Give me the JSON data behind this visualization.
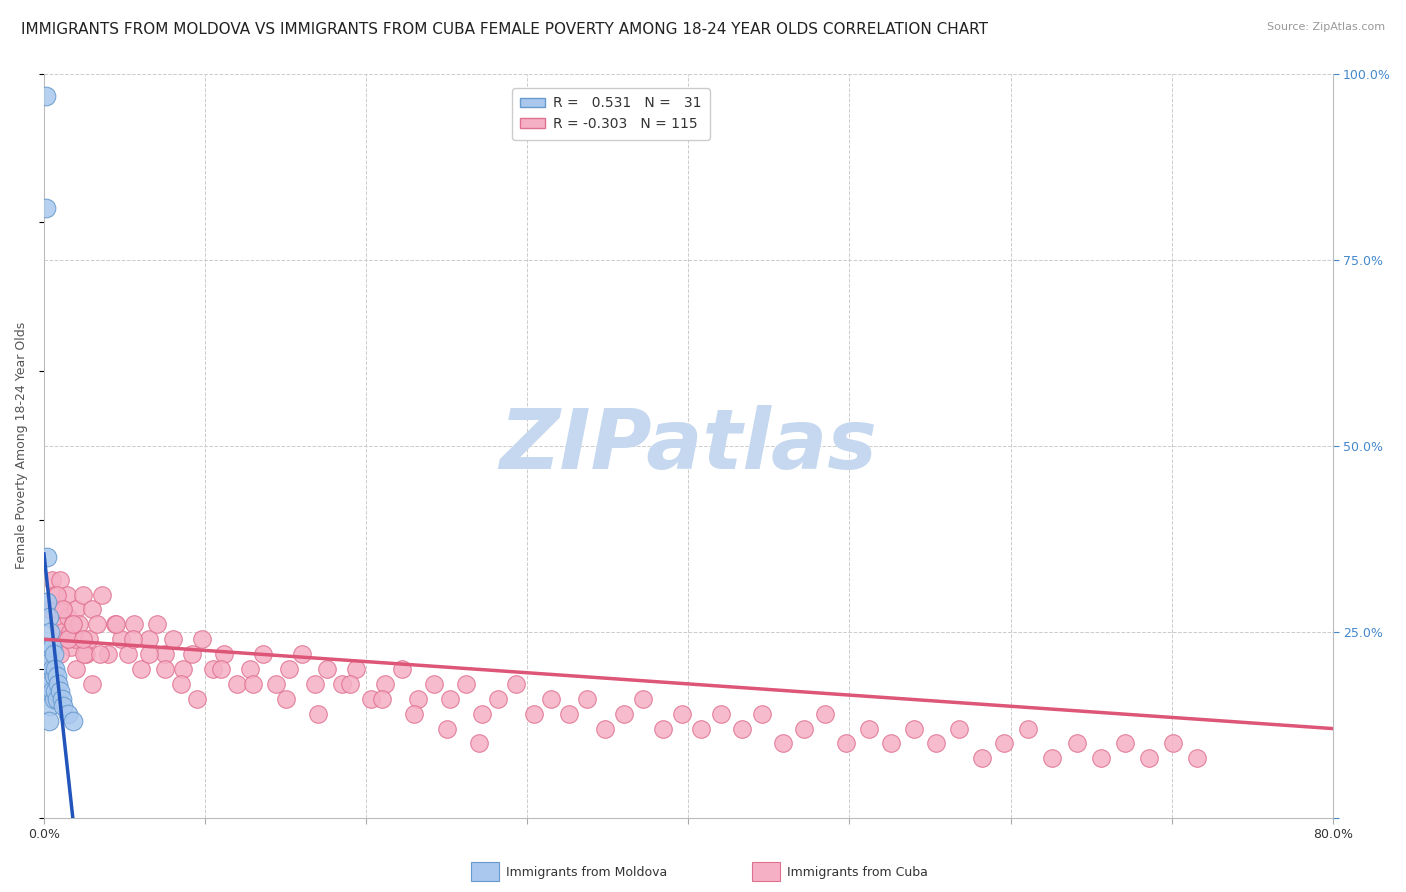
{
  "title": "IMMIGRANTS FROM MOLDOVA VS IMMIGRANTS FROM CUBA FEMALE POVERTY AMONG 18-24 YEAR OLDS CORRELATION CHART",
  "source": "Source: ZipAtlas.com",
  "ylabel": "Female Poverty Among 18-24 Year Olds",
  "xlim": [
    0.0,
    0.8
  ],
  "ylim": [
    0.0,
    1.0
  ],
  "xticks": [
    0.0,
    0.1,
    0.2,
    0.3,
    0.4,
    0.5,
    0.6,
    0.7,
    0.8
  ],
  "yticks_right": [
    0.0,
    0.25,
    0.5,
    0.75,
    1.0
  ],
  "moldova_R": 0.531,
  "moldova_N": 31,
  "cuba_R": -0.303,
  "cuba_N": 115,
  "moldova_color": "#aac8ee",
  "cuba_color": "#f5b0c5",
  "moldova_edge_color": "#6699cc",
  "cuba_edge_color": "#e07090",
  "moldova_line_color": "#2255bb",
  "cuba_line_color": "#dd5577",
  "background_color": "#ffffff",
  "grid_color": "#cccccc",
  "watermark": "ZIPatlas",
  "watermark_color": "#c5d8ef",
  "title_fontsize": 11,
  "axis_label_fontsize": 9,
  "tick_fontsize": 9,
  "legend_fontsize": 10,
  "moldova_x": [
    0.001,
    0.001,
    0.002,
    0.002,
    0.002,
    0.003,
    0.003,
    0.003,
    0.003,
    0.004,
    0.004,
    0.004,
    0.004,
    0.005,
    0.005,
    0.005,
    0.006,
    0.006,
    0.006,
    0.007,
    0.007,
    0.008,
    0.008,
    0.009,
    0.01,
    0.011,
    0.012,
    0.015,
    0.018,
    0.002,
    0.003
  ],
  "moldova_y": [
    0.97,
    0.82,
    0.29,
    0.23,
    0.2,
    0.27,
    0.22,
    0.19,
    0.17,
    0.25,
    0.21,
    0.18,
    0.15,
    0.23,
    0.2,
    0.17,
    0.22,
    0.19,
    0.16,
    0.2,
    0.17,
    0.19,
    0.16,
    0.18,
    0.17,
    0.16,
    0.15,
    0.14,
    0.13,
    0.35,
    0.13
  ],
  "cuba_x": [
    0.003,
    0.005,
    0.007,
    0.008,
    0.009,
    0.01,
    0.011,
    0.012,
    0.013,
    0.014,
    0.015,
    0.016,
    0.017,
    0.018,
    0.019,
    0.02,
    0.022,
    0.024,
    0.026,
    0.028,
    0.03,
    0.033,
    0.036,
    0.04,
    0.044,
    0.048,
    0.052,
    0.056,
    0.06,
    0.065,
    0.07,
    0.075,
    0.08,
    0.086,
    0.092,
    0.098,
    0.105,
    0.112,
    0.12,
    0.128,
    0.136,
    0.144,
    0.152,
    0.16,
    0.168,
    0.176,
    0.185,
    0.194,
    0.203,
    0.212,
    0.222,
    0.232,
    0.242,
    0.252,
    0.262,
    0.272,
    0.282,
    0.293,
    0.304,
    0.315,
    0.326,
    0.337,
    0.348,
    0.36,
    0.372,
    0.384,
    0.396,
    0.408,
    0.42,
    0.433,
    0.446,
    0.459,
    0.472,
    0.485,
    0.498,
    0.512,
    0.526,
    0.54,
    0.554,
    0.568,
    0.582,
    0.596,
    0.611,
    0.626,
    0.641,
    0.656,
    0.671,
    0.686,
    0.701,
    0.716,
    0.01,
    0.015,
    0.02,
    0.025,
    0.03,
    0.008,
    0.012,
    0.018,
    0.024,
    0.035,
    0.045,
    0.055,
    0.065,
    0.075,
    0.085,
    0.095,
    0.11,
    0.13,
    0.15,
    0.17,
    0.19,
    0.21,
    0.23,
    0.25,
    0.27
  ],
  "cuba_y": [
    0.28,
    0.32,
    0.3,
    0.26,
    0.28,
    0.32,
    0.25,
    0.28,
    0.24,
    0.3,
    0.27,
    0.25,
    0.23,
    0.26,
    0.24,
    0.28,
    0.26,
    0.3,
    0.22,
    0.24,
    0.28,
    0.26,
    0.3,
    0.22,
    0.26,
    0.24,
    0.22,
    0.26,
    0.2,
    0.24,
    0.26,
    0.22,
    0.24,
    0.2,
    0.22,
    0.24,
    0.2,
    0.22,
    0.18,
    0.2,
    0.22,
    0.18,
    0.2,
    0.22,
    0.18,
    0.2,
    0.18,
    0.2,
    0.16,
    0.18,
    0.2,
    0.16,
    0.18,
    0.16,
    0.18,
    0.14,
    0.16,
    0.18,
    0.14,
    0.16,
    0.14,
    0.16,
    0.12,
    0.14,
    0.16,
    0.12,
    0.14,
    0.12,
    0.14,
    0.12,
    0.14,
    0.1,
    0.12,
    0.14,
    0.1,
    0.12,
    0.1,
    0.12,
    0.1,
    0.12,
    0.08,
    0.1,
    0.12,
    0.08,
    0.1,
    0.08,
    0.1,
    0.08,
    0.1,
    0.08,
    0.22,
    0.24,
    0.2,
    0.22,
    0.18,
    0.3,
    0.28,
    0.26,
    0.24,
    0.22,
    0.26,
    0.24,
    0.22,
    0.2,
    0.18,
    0.16,
    0.2,
    0.18,
    0.16,
    0.14,
    0.18,
    0.16,
    0.14,
    0.12,
    0.1
  ]
}
